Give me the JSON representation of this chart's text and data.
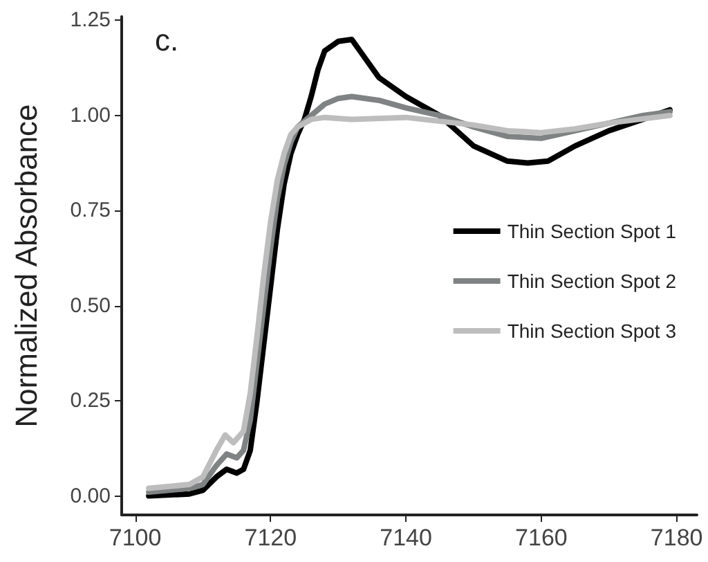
{
  "chart_data": {
    "type": "line",
    "ylabel": "Normalized Absorbance",
    "annotations": [
      "c."
    ],
    "xlim": [
      7098,
      7183
    ],
    "xticks": [
      7100,
      7120,
      7140,
      7160,
      7180
    ],
    "ylim": [
      -0.05,
      1.26
    ],
    "yticks": [
      {
        "value": 0,
        "label": "0.00"
      },
      {
        "value": 0.25,
        "label": "0.25"
      },
      {
        "value": 0.5,
        "label": "0.50"
      },
      {
        "value": 0.75,
        "label": "0.75"
      },
      {
        "value": 1,
        "label": "1.00"
      },
      {
        "value": 1.25,
        "label": "1.25"
      }
    ],
    "grid": false,
    "legend": "right",
    "marker": "none",
    "line_style": "solid",
    "series": [
      {
        "name": "Thin Section Spot 1",
        "color": "#000000",
        "x": [
          7102,
          7108,
          7110,
          7112,
          7113.5,
          7115,
          7116,
          7117,
          7118,
          7119,
          7120,
          7121,
          7122,
          7123,
          7124,
          7125,
          7126,
          7127,
          7128,
          7130,
          7132,
          7134,
          7136,
          7140,
          7145,
          7150,
          7155,
          7158,
          7161,
          7165,
          7170,
          7175,
          7179
        ],
        "values": [
          0.0,
          0.005,
          0.015,
          0.05,
          0.07,
          0.06,
          0.07,
          0.12,
          0.25,
          0.4,
          0.55,
          0.7,
          0.82,
          0.9,
          0.95,
          0.99,
          1.05,
          1.12,
          1.17,
          1.195,
          1.2,
          1.15,
          1.1,
          1.05,
          1.0,
          0.92,
          0.88,
          0.875,
          0.88,
          0.92,
          0.96,
          0.99,
          1.015
        ]
      },
      {
        "name": "Thin Section Spot 2",
        "color": "#7f8383",
        "x": [
          7102,
          7108,
          7110,
          7112,
          7113.5,
          7115,
          7116,
          7117,
          7118,
          7119,
          7120,
          7121,
          7122,
          7123,
          7124,
          7126,
          7128,
          7130,
          7132,
          7136,
          7140,
          7145,
          7150,
          7155,
          7160,
          7165,
          7170,
          7175,
          7179
        ],
        "values": [
          0.01,
          0.02,
          0.03,
          0.08,
          0.11,
          0.1,
          0.12,
          0.2,
          0.35,
          0.5,
          0.65,
          0.78,
          0.87,
          0.93,
          0.97,
          1.0,
          1.03,
          1.045,
          1.05,
          1.04,
          1.02,
          1.0,
          0.97,
          0.945,
          0.94,
          0.96,
          0.98,
          1.0,
          1.01
        ]
      },
      {
        "name": "Thin Section Spot 3",
        "color": "#bdbdbd",
        "x": [
          7102,
          7108,
          7110,
          7112,
          7113.3,
          7114.5,
          7116,
          7117,
          7118,
          7119,
          7120,
          7121,
          7122,
          7123,
          7124,
          7126,
          7128,
          7132,
          7140,
          7150,
          7155,
          7160,
          7165,
          7170,
          7179
        ],
        "values": [
          0.02,
          0.03,
          0.05,
          0.12,
          0.16,
          0.14,
          0.17,
          0.27,
          0.42,
          0.58,
          0.72,
          0.83,
          0.9,
          0.95,
          0.97,
          0.99,
          0.995,
          0.99,
          0.995,
          0.975,
          0.96,
          0.955,
          0.965,
          0.98,
          1.0
        ]
      }
    ]
  }
}
